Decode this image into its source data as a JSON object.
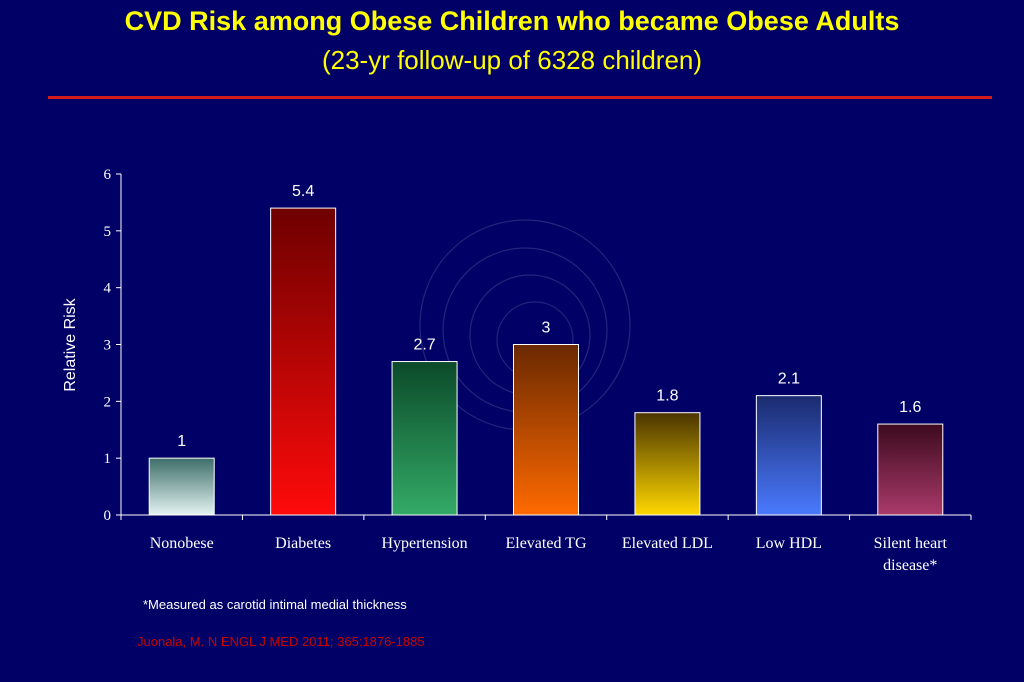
{
  "slide": {
    "title": "CVD Risk among Obese Children who became Obese Adults",
    "subtitle": "(23-yr follow-up of 6328 children)",
    "footnote": "*Measured as carotid intimal medial thickness",
    "citation": "Juonala, M. N ENGL J MED 2011; 365:1876-1885"
  },
  "colors": {
    "background": "#000066",
    "title": "#ffff00",
    "rule": "#d41a1a",
    "citation": "#cc0000"
  },
  "chart_data": {
    "type": "bar",
    "title": "",
    "xlabel": "",
    "ylabel": "Relative Risk",
    "ylim": [
      0,
      6
    ],
    "yticks": [
      0,
      1,
      2,
      3,
      4,
      5,
      6
    ],
    "grid": false,
    "categories": [
      [
        "Nonobese"
      ],
      [
        "Diabetes"
      ],
      [
        "Hypertension"
      ],
      [
        "Elevated TG"
      ],
      [
        "Elevated LDL"
      ],
      [
        "Low HDL"
      ],
      [
        "Silent heart",
        "disease*"
      ]
    ],
    "values": [
      1,
      5.4,
      2.7,
      3,
      1.8,
      2.1,
      1.6
    ],
    "data_labels": [
      "1",
      "5.4",
      "2.7",
      "3",
      "1.8",
      "2.1",
      "1.6"
    ],
    "bar_colors": [
      [
        "#3e6e6a",
        "#e4f4f2"
      ],
      [
        "#6e0000",
        "#ff0a0a"
      ],
      [
        "#0b4a2a",
        "#33aa66"
      ],
      [
        "#6a2800",
        "#ff6a00"
      ],
      [
        "#4a3400",
        "#ffd800"
      ],
      [
        "#1a2a6e",
        "#4a7aff"
      ],
      [
        "#3c0a1e",
        "#aa3a6a"
      ]
    ]
  }
}
